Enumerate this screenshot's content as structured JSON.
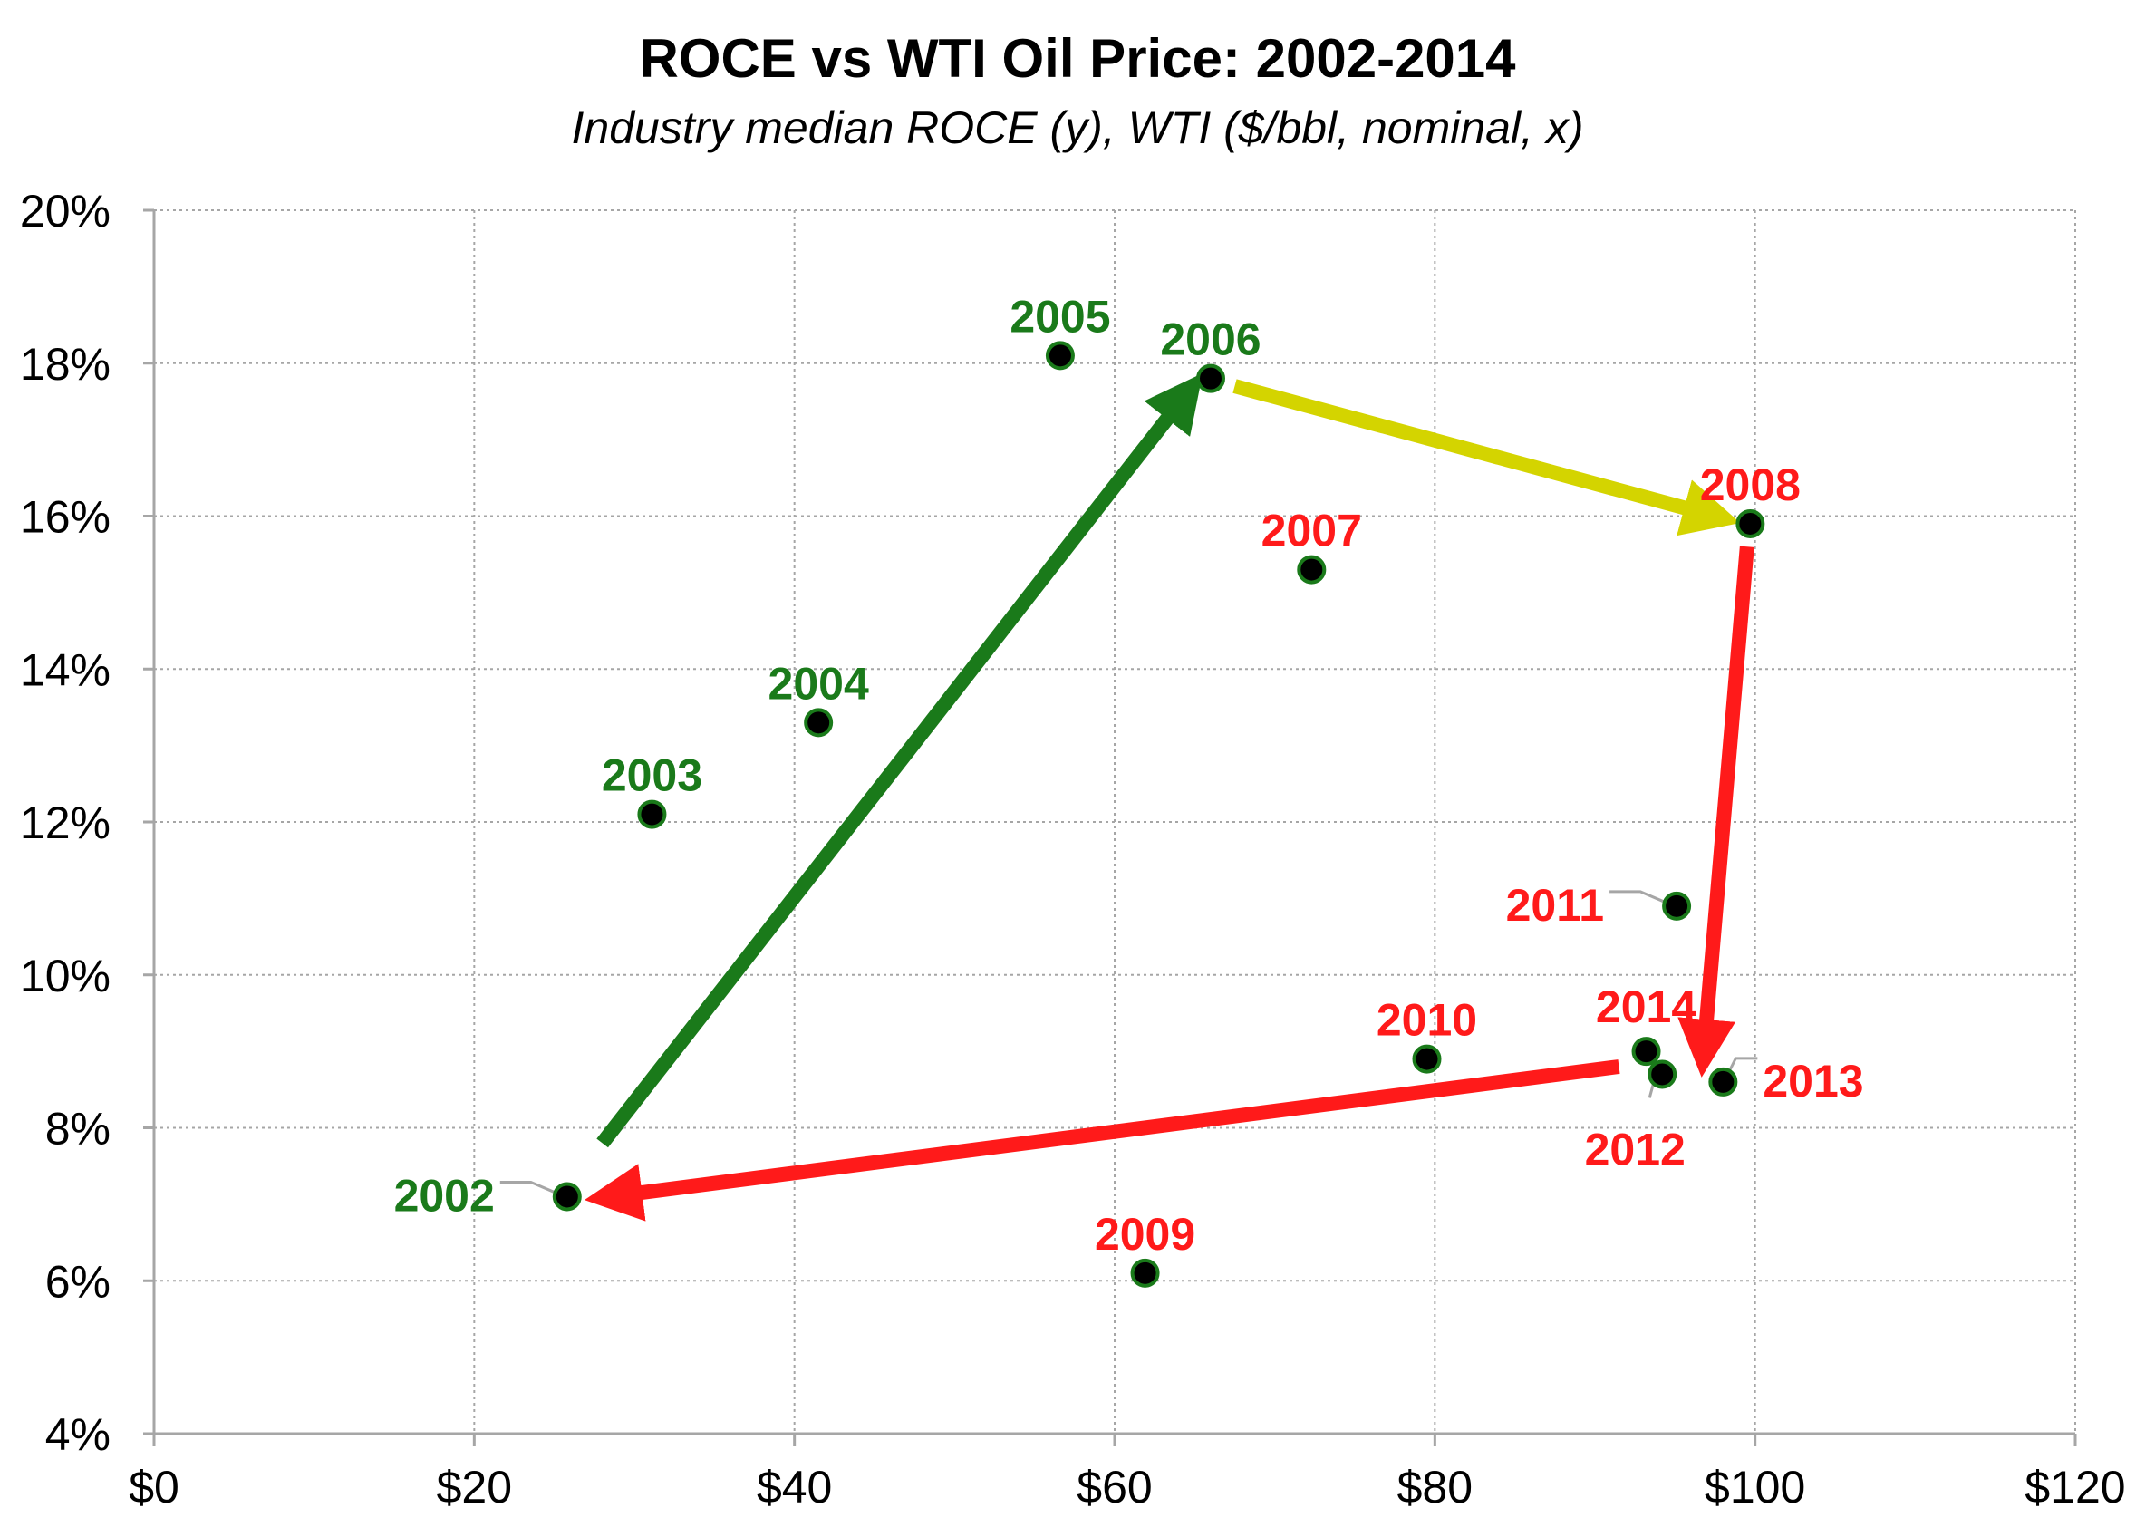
{
  "chart_data": {
    "type": "scatter",
    "title": "ROCE vs WTI Oil Price: 2002-2014",
    "subtitle": "Industry median ROCE (y), WTI ($/bbl, nominal, x)",
    "xlabel": "",
    "ylabel": "",
    "xlim": [
      0,
      120
    ],
    "ylim": [
      4,
      20
    ],
    "x_ticks": [
      0,
      20,
      40,
      60,
      80,
      100,
      120
    ],
    "x_tick_labels": [
      "$0",
      "$20",
      "$40",
      "$60",
      "$80",
      "$100",
      "$120"
    ],
    "y_ticks": [
      4,
      6,
      8,
      10,
      12,
      14,
      16,
      18,
      20
    ],
    "y_tick_labels": [
      "4%",
      "6%",
      "8%",
      "10%",
      "12%",
      "14%",
      "16%",
      "18%",
      "20%"
    ],
    "grid": true,
    "points": [
      {
        "label": "2002",
        "x": 25.8,
        "y": 7.1,
        "color": "#1a7a1a"
      },
      {
        "label": "2003",
        "x": 31.1,
        "y": 12.1,
        "color": "#1a7a1a"
      },
      {
        "label": "2004",
        "x": 41.5,
        "y": 13.3,
        "color": "#1a7a1a"
      },
      {
        "label": "2005",
        "x": 56.6,
        "y": 18.1,
        "color": "#1a7a1a"
      },
      {
        "label": "2006",
        "x": 66.0,
        "y": 17.8,
        "color": "#1a7a1a"
      },
      {
        "label": "2007",
        "x": 72.3,
        "y": 15.3,
        "color": "#ff1a1a"
      },
      {
        "label": "2008",
        "x": 99.7,
        "y": 15.9,
        "color": "#ff1a1a"
      },
      {
        "label": "2009",
        "x": 61.9,
        "y": 6.1,
        "color": "#ff1a1a"
      },
      {
        "label": "2010",
        "x": 79.5,
        "y": 8.9,
        "color": "#ff1a1a"
      },
      {
        "label": "2011",
        "x": 95.1,
        "y": 10.9,
        "color": "#ff1a1a"
      },
      {
        "label": "2012",
        "x": 94.2,
        "y": 8.7,
        "color": "#ff1a1a"
      },
      {
        "label": "2013",
        "x": 98.0,
        "y": 8.6,
        "color": "#ff1a1a"
      },
      {
        "label": "2014",
        "x": 93.2,
        "y": 9.0,
        "color": "#ff1a1a"
      }
    ],
    "arrows": [
      {
        "from": [
          28.0,
          7.8
        ],
        "to": [
          64.5,
          17.6
        ],
        "color": "#1a7a1a"
      },
      {
        "from": [
          67.5,
          17.7
        ],
        "to": [
          97.5,
          16.0
        ],
        "color": "#d4d400"
      },
      {
        "from": [
          99.5,
          15.6
        ],
        "to": [
          96.8,
          9.0
        ],
        "color": "#ff1a1a"
      },
      {
        "from": [
          91.5,
          8.8
        ],
        "to": [
          28.5,
          7.1
        ],
        "color": "#ff1a1a"
      }
    ]
  }
}
